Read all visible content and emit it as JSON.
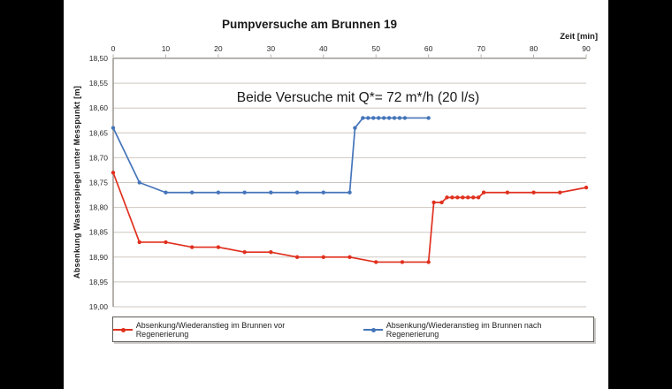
{
  "frame": {
    "background": "#000000",
    "canvas_background": "#ffffff"
  },
  "chart_data": {
    "type": "line",
    "title": "Pumpversuche am Brunnen 19",
    "annotation": "Beide Versuche mit Q*= 72 m*/h (20 l/s)",
    "legend_position": "bottom",
    "grid": true,
    "x_axis": {
      "label": "Zeit [min]",
      "position": "top",
      "min": 0,
      "max": 90,
      "tick_values": [
        0,
        10,
        20,
        30,
        40,
        50,
        60,
        70,
        80,
        90
      ],
      "tick_labels": [
        "0",
        "10",
        "20",
        "30",
        "40",
        "50",
        "60",
        "70",
        "80",
        "90"
      ]
    },
    "y_axis": {
      "label": "Absenkung Wasserspiegel unter Messpunkt [m]",
      "direction": "inverted",
      "min": 18.5,
      "max": 19.0,
      "tick_values": [
        18.5,
        18.55,
        18.6,
        18.65,
        18.7,
        18.75,
        18.8,
        18.85,
        18.9,
        18.95,
        19.0
      ],
      "tick_labels": [
        "18,50",
        "18,55",
        "18,60",
        "18,65",
        "18,70",
        "18,75",
        "18,80",
        "18,85",
        "18,90",
        "18,95",
        "19,00"
      ]
    },
    "colors": {
      "gridline": "#cdc6bf",
      "axis": "#8c8780",
      "tick_text": "#2b2b2b"
    },
    "series": [
      {
        "name": "Absenkung/Wiederanstieg im Brunnen vor Regenerierung",
        "color": "#e0301e",
        "points": [
          [
            0,
            18.73
          ],
          [
            5,
            18.87
          ],
          [
            10,
            18.87
          ],
          [
            15,
            18.88
          ],
          [
            20,
            18.88
          ],
          [
            25,
            18.89
          ],
          [
            30,
            18.89
          ],
          [
            35,
            18.9
          ],
          [
            40,
            18.9
          ],
          [
            45,
            18.9
          ],
          [
            50,
            18.91
          ],
          [
            55,
            18.91
          ],
          [
            60,
            18.91
          ],
          [
            61,
            18.79
          ],
          [
            62.5,
            18.79
          ],
          [
            63.5,
            18.78
          ],
          [
            64.5,
            18.78
          ],
          [
            65.5,
            18.78
          ],
          [
            66.5,
            18.78
          ],
          [
            67.5,
            18.78
          ],
          [
            68.5,
            18.78
          ],
          [
            69.5,
            18.78
          ],
          [
            70.5,
            18.77
          ],
          [
            75,
            18.77
          ],
          [
            80,
            18.77
          ],
          [
            85,
            18.77
          ],
          [
            90,
            18.76
          ]
        ]
      },
      {
        "name": "Absenkung/Wiederanstieg im Brunnen nach Regenerierung",
        "color": "#4575ba",
        "points": [
          [
            0,
            18.64
          ],
          [
            5,
            18.75
          ],
          [
            10,
            18.77
          ],
          [
            15,
            18.77
          ],
          [
            20,
            18.77
          ],
          [
            25,
            18.77
          ],
          [
            30,
            18.77
          ],
          [
            35,
            18.77
          ],
          [
            40,
            18.77
          ],
          [
            45,
            18.77
          ],
          [
            46,
            18.64
          ],
          [
            47.5,
            18.62
          ],
          [
            48.5,
            18.62
          ],
          [
            49.5,
            18.62
          ],
          [
            50.5,
            18.62
          ],
          [
            51.5,
            18.62
          ],
          [
            52.5,
            18.62
          ],
          [
            53.5,
            18.62
          ],
          [
            54.5,
            18.62
          ],
          [
            55.5,
            18.62
          ],
          [
            60,
            18.62
          ]
        ]
      }
    ]
  }
}
